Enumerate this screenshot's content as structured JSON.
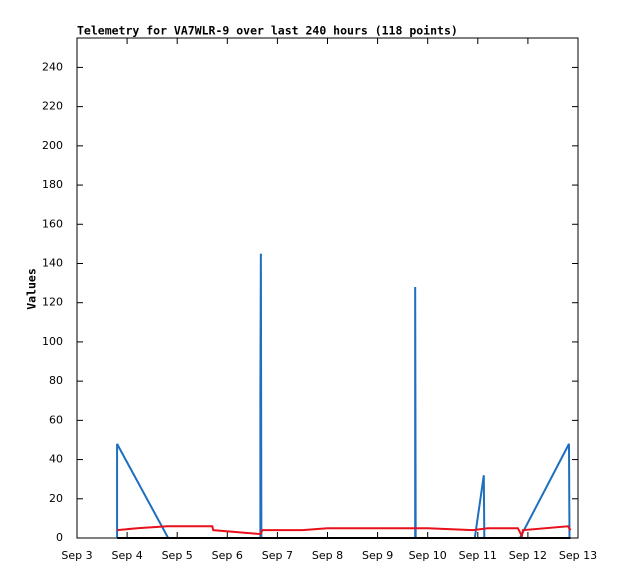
{
  "chart_data": {
    "type": "line",
    "title": "Telemetry for VA7WLR-9 over last 240 hours (118 points)",
    "y_label": "Values",
    "xlim": [
      3,
      13
    ],
    "xticks": [
      {
        "value": 3,
        "label": "Sep 3"
      },
      {
        "value": 4,
        "label": "Sep 4"
      },
      {
        "value": 5,
        "label": "Sep 5"
      },
      {
        "value": 6,
        "label": "Sep 6"
      },
      {
        "value": 7,
        "label": "Sep 7"
      },
      {
        "value": 8,
        "label": "Sep 8"
      },
      {
        "value": 9,
        "label": "Sep 9"
      },
      {
        "value": 10,
        "label": "Sep 10"
      },
      {
        "value": 11,
        "label": "Sep 11"
      },
      {
        "value": 12,
        "label": "Sep 12"
      },
      {
        "value": 13,
        "label": "Sep 13"
      }
    ],
    "ylim": [
      0,
      255
    ],
    "yticks": [
      0,
      20,
      40,
      60,
      80,
      100,
      120,
      140,
      160,
      180,
      200,
      220,
      240
    ],
    "series": [
      {
        "color": "#1f6fc0",
        "x": [
          3.8,
          3.8,
          4.82,
          6.66,
          6.66,
          6.67,
          6.68,
          9.75,
          9.75,
          9.76,
          10.94,
          11.12,
          11.13,
          11.84,
          12.82,
          12.83
        ],
        "values": [
          0,
          48,
          0,
          0,
          73,
          145,
          0,
          0,
          128,
          0,
          0,
          32,
          0,
          0,
          48,
          0
        ]
      },
      {
        "color": "#e8101a",
        "x": [
          3.8,
          4.2,
          4.8,
          5.7,
          5.72,
          6.66,
          6.7,
          7.5,
          8.0,
          9.75,
          10.0,
          10.9,
          11.2,
          11.8,
          11.88,
          11.9,
          12.8,
          12.85
        ],
        "values": [
          4,
          5,
          6,
          6,
          4,
          2,
          4,
          4,
          5,
          5,
          5,
          4,
          5,
          5,
          1,
          4,
          6,
          4
        ]
      },
      {
        "color": "#000000",
        "x": [
          3.8,
          12.85
        ],
        "values": [
          0,
          0
        ]
      }
    ]
  }
}
